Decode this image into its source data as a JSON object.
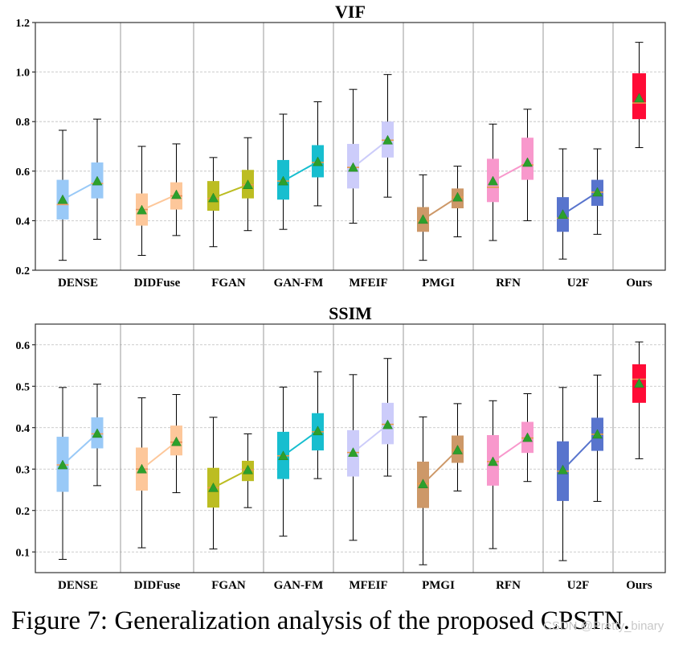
{
  "figure_caption": "Figure 7: Generalization analysis of the proposed CPSTN.",
  "watermark": "CSDN @Pretty_binary",
  "chart_data": [
    {
      "type": "box",
      "title": "VIF",
      "ylim": [
        0.2,
        1.2
      ],
      "yticks": [
        "0.2",
        "0.4",
        "0.6",
        "0.8",
        "1.0",
        "1.2"
      ],
      "grid": true,
      "groups": [
        {
          "name": "DENSE",
          "color": "#99c9f7",
          "median_color": "#f5a067",
          "boxes": [
            {
              "whisker_low": 0.24,
              "q1": 0.405,
              "median": 0.465,
              "q3": 0.565,
              "whisker_high": 0.765,
              "mean": 0.485
            },
            {
              "whisker_low": 0.325,
              "q1": 0.49,
              "median": 0.55,
              "q3": 0.635,
              "whisker_high": 0.81,
              "mean": 0.56
            }
          ]
        },
        {
          "name": "DIDFuse",
          "color": "#fdc79a",
          "median_color": "#e8915a",
          "boxes": [
            {
              "whisker_low": 0.26,
              "q1": 0.38,
              "median": 0.445,
              "q3": 0.51,
              "whisker_high": 0.7,
              "mean": 0.443
            },
            {
              "whisker_low": 0.34,
              "q1": 0.445,
              "median": 0.5,
              "q3": 0.555,
              "whisker_high": 0.71,
              "mean": 0.505
            }
          ]
        },
        {
          "name": "FGAN",
          "color": "#bcbd22",
          "median_color": "#e69a4c",
          "boxes": [
            {
              "whisker_low": 0.295,
              "q1": 0.44,
              "median": 0.49,
              "q3": 0.56,
              "whisker_high": 0.655,
              "mean": 0.492
            },
            {
              "whisker_low": 0.36,
              "q1": 0.49,
              "median": 0.545,
              "q3": 0.605,
              "whisker_high": 0.735,
              "mean": 0.545
            }
          ]
        },
        {
          "name": "GAN-FM",
          "color": "#17becf",
          "median_color": "#e69a4c",
          "boxes": [
            {
              "whisker_low": 0.365,
              "q1": 0.485,
              "median": 0.56,
              "q3": 0.645,
              "whisker_high": 0.83,
              "mean": 0.56
            },
            {
              "whisker_low": 0.46,
              "q1": 0.575,
              "median": 0.635,
              "q3": 0.705,
              "whisker_high": 0.88,
              "mean": 0.638
            }
          ]
        },
        {
          "name": "MFEIF",
          "color": "#ccccfa",
          "median_color": "#e69a4c",
          "boxes": [
            {
              "whisker_low": 0.39,
              "q1": 0.53,
              "median": 0.615,
              "q3": 0.71,
              "whisker_high": 0.93,
              "mean": 0.615
            },
            {
              "whisker_low": 0.495,
              "q1": 0.655,
              "median": 0.725,
              "q3": 0.8,
              "whisker_high": 0.99,
              "mean": 0.725
            }
          ]
        },
        {
          "name": "PMGI",
          "color": "#cd9868",
          "median_color": "#e69a4c",
          "boxes": [
            {
              "whisker_low": 0.24,
              "q1": 0.355,
              "median": 0.4,
              "q3": 0.455,
              "whisker_high": 0.585,
              "mean": 0.405
            },
            {
              "whisker_low": 0.335,
              "q1": 0.45,
              "median": 0.495,
              "q3": 0.53,
              "whisker_high": 0.62,
              "mean": 0.495
            }
          ]
        },
        {
          "name": "RFN",
          "color": "#f898cc",
          "median_color": "#e69a4c",
          "boxes": [
            {
              "whisker_low": 0.32,
              "q1": 0.475,
              "median": 0.535,
              "q3": 0.65,
              "whisker_high": 0.79,
              "mean": 0.56
            },
            {
              "whisker_low": 0.4,
              "q1": 0.565,
              "median": 0.625,
              "q3": 0.735,
              "whisker_high": 0.85,
              "mean": 0.635
            }
          ]
        },
        {
          "name": "U2F",
          "color": "#5874cd",
          "median_color": "#e69a4c",
          "boxes": [
            {
              "whisker_low": 0.245,
              "q1": 0.355,
              "median": 0.41,
              "q3": 0.495,
              "whisker_high": 0.69,
              "mean": 0.425
            },
            {
              "whisker_low": 0.345,
              "q1": 0.46,
              "median": 0.515,
              "q3": 0.565,
              "whisker_high": 0.69,
              "mean": 0.515
            }
          ]
        },
        {
          "name": "Ours",
          "color": "#ff0b36",
          "median_color": "#e69a4c",
          "boxes": [
            {
              "whisker_low": 0.695,
              "q1": 0.81,
              "median": 0.875,
              "q3": 0.995,
              "whisker_high": 1.12,
              "mean": 0.895
            }
          ]
        }
      ]
    },
    {
      "type": "box",
      "title": "SSIM",
      "ylim": [
        0.05,
        0.65
      ],
      "yticks": [
        "0.1",
        "0.2",
        "0.3",
        "0.4",
        "0.5",
        "0.6"
      ],
      "grid": true,
      "groups": [
        {
          "name": "DENSE",
          "color": "#99c9f7",
          "median_color": "#f5a067",
          "boxes": [
            {
              "whisker_low": 0.082,
              "q1": 0.245,
              "median": 0.31,
              "q3": 0.378,
              "whisker_high": 0.497,
              "mean": 0.31
            },
            {
              "whisker_low": 0.26,
              "q1": 0.35,
              "median": 0.385,
              "q3": 0.425,
              "whisker_high": 0.505,
              "mean": 0.386
            }
          ]
        },
        {
          "name": "DIDFuse",
          "color": "#fdc79a",
          "median_color": "#e8915a",
          "boxes": [
            {
              "whisker_low": 0.11,
              "q1": 0.248,
              "median": 0.3,
              "q3": 0.352,
              "whisker_high": 0.472,
              "mean": 0.3
            },
            {
              "whisker_low": 0.243,
              "q1": 0.333,
              "median": 0.365,
              "q3": 0.405,
              "whisker_high": 0.48,
              "mean": 0.366
            }
          ]
        },
        {
          "name": "FGAN",
          "color": "#bcbd22",
          "median_color": "#e69a4c",
          "boxes": [
            {
              "whisker_low": 0.107,
              "q1": 0.207,
              "median": 0.255,
              "q3": 0.303,
              "whisker_high": 0.425,
              "mean": 0.255
            },
            {
              "whisker_low": 0.207,
              "q1": 0.271,
              "median": 0.298,
              "q3": 0.32,
              "whisker_high": 0.385,
              "mean": 0.298
            }
          ]
        },
        {
          "name": "GAN-FM",
          "color": "#17becf",
          "median_color": "#e69a4c",
          "boxes": [
            {
              "whisker_low": 0.138,
              "q1": 0.276,
              "median": 0.332,
              "q3": 0.39,
              "whisker_high": 0.498,
              "mean": 0.332
            },
            {
              "whisker_low": 0.277,
              "q1": 0.345,
              "median": 0.39,
              "q3": 0.435,
              "whisker_high": 0.535,
              "mean": 0.392
            }
          ]
        },
        {
          "name": "MFEIF",
          "color": "#ccccfa",
          "median_color": "#e69a4c",
          "boxes": [
            {
              "whisker_low": 0.128,
              "q1": 0.282,
              "median": 0.34,
              "q3": 0.394,
              "whisker_high": 0.528,
              "mean": 0.34
            },
            {
              "whisker_low": 0.283,
              "q1": 0.36,
              "median": 0.408,
              "q3": 0.46,
              "whisker_high": 0.567,
              "mean": 0.407
            }
          ]
        },
        {
          "name": "PMGI",
          "color": "#cd9868",
          "median_color": "#e69a4c",
          "boxes": [
            {
              "whisker_low": 0.069,
              "q1": 0.206,
              "median": 0.265,
              "q3": 0.318,
              "whisker_high": 0.426,
              "mean": 0.264
            },
            {
              "whisker_low": 0.247,
              "q1": 0.315,
              "median": 0.346,
              "q3": 0.381,
              "whisker_high": 0.458,
              "mean": 0.346
            }
          ]
        },
        {
          "name": "RFN",
          "color": "#f898cc",
          "median_color": "#e69a4c",
          "boxes": [
            {
              "whisker_low": 0.108,
              "q1": 0.26,
              "median": 0.318,
              "q3": 0.382,
              "whisker_high": 0.465,
              "mean": 0.318
            },
            {
              "whisker_low": 0.27,
              "q1": 0.339,
              "median": 0.375,
              "q3": 0.414,
              "whisker_high": 0.482,
              "mean": 0.376
            }
          ]
        },
        {
          "name": "U2F",
          "color": "#5874cd",
          "median_color": "#e69a4c",
          "boxes": [
            {
              "whisker_low": 0.079,
              "q1": 0.223,
              "median": 0.295,
              "q3": 0.367,
              "whisker_high": 0.497,
              "mean": 0.298
            },
            {
              "whisker_low": 0.222,
              "q1": 0.344,
              "median": 0.384,
              "q3": 0.424,
              "whisker_high": 0.527,
              "mean": 0.384
            }
          ]
        },
        {
          "name": "Ours",
          "color": "#ff0b36",
          "median_color": "#e69a4c",
          "boxes": [
            {
              "whisker_low": 0.325,
              "q1": 0.46,
              "median": 0.517,
              "q3": 0.553,
              "whisker_high": 0.607,
              "mean": 0.507
            }
          ]
        }
      ]
    }
  ]
}
